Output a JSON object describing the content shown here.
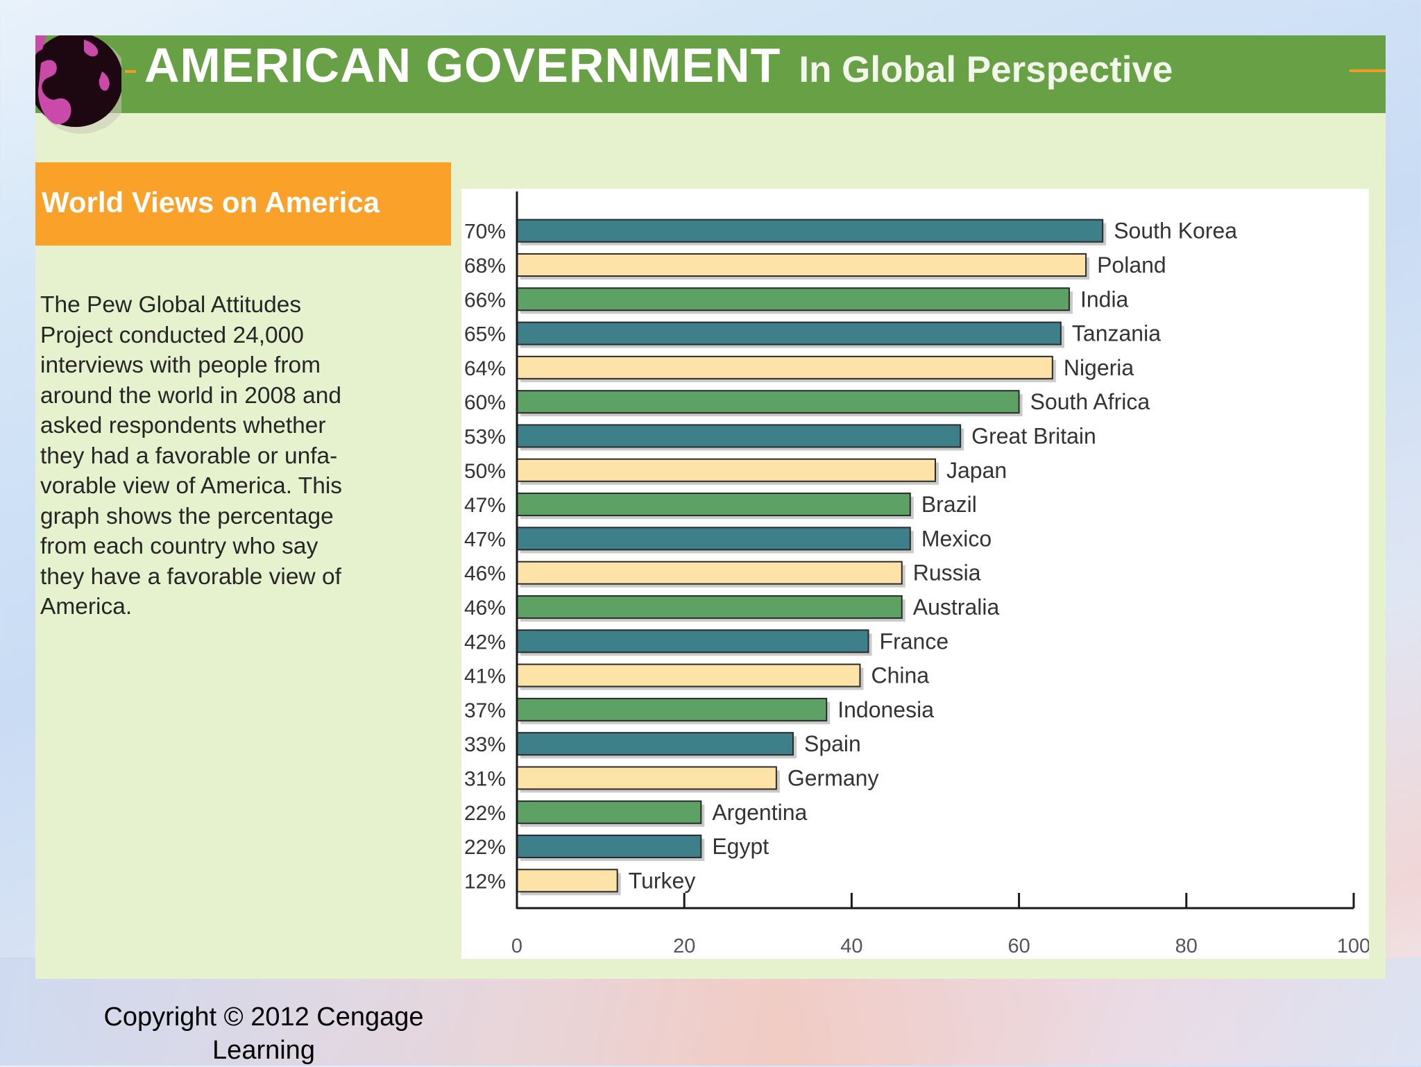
{
  "header": {
    "title_main": "AMERICAN GOVERNMENT",
    "title_sub": "In Global Perspective",
    "colors": {
      "banner": "#67a045",
      "accent": "#f59a23"
    },
    "logo_icon": "globe-icon"
  },
  "sidebar": {
    "heading": "World Views on America",
    "heading_bg": "#f9a128",
    "description_lines": [
      "The Pew Global Attitudes",
      "Project conducted 24,000",
      "interviews with people from",
      "around the world in 2008 and",
      "asked respondents whether",
      "they had a favorable or unfa-",
      "vorable view of America. This",
      "graph shows the percentage",
      "from each country who say",
      "they have a favorable view of",
      "America."
    ]
  },
  "chart_data": {
    "type": "bar",
    "orientation": "horizontal",
    "categories": [
      "South Korea",
      "Poland",
      "India",
      "Tanzania",
      "Nigeria",
      "South Africa",
      "Great Britain",
      "Japan",
      "Brazil",
      "Mexico",
      "Russia",
      "Australia",
      "France",
      "China",
      "Indonesia",
      "Spain",
      "Germany",
      "Argentina",
      "Egypt",
      "Turkey"
    ],
    "values": [
      70,
      68,
      66,
      65,
      64,
      60,
      53,
      50,
      47,
      47,
      46,
      46,
      42,
      41,
      37,
      33,
      31,
      22,
      22,
      12
    ],
    "value_labels": [
      "70%",
      "68%",
      "66%",
      "65%",
      "64%",
      "60%",
      "53%",
      "50%",
      "47%",
      "47%",
      "46%",
      "46%",
      "42%",
      "41%",
      "37%",
      "33%",
      "31%",
      "22%",
      "22%",
      "12%"
    ],
    "bar_colors": [
      "#3e8089",
      "#fde3a8",
      "#5ea165",
      "#3e8089",
      "#fde3a8",
      "#5ea165",
      "#3e8089",
      "#fde3a8",
      "#5ea165",
      "#3e8089",
      "#fde3a8",
      "#5ea165",
      "#3e8089",
      "#fde3a8",
      "#5ea165",
      "#3e8089",
      "#fde3a8",
      "#5ea165",
      "#3e8089",
      "#fde3a8"
    ],
    "xlim": [
      0,
      100
    ],
    "x_ticks": [
      0,
      20,
      40,
      60,
      80,
      100
    ],
    "x_tick_labels": [
      "0",
      "20",
      "40",
      "60",
      "80",
      "100"
    ],
    "title": "",
    "xlabel": "",
    "ylabel": "",
    "grid": false
  },
  "footer": {
    "copyright_lines": [
      "Copyright © 2012 Cengage",
      "Learning"
    ]
  }
}
